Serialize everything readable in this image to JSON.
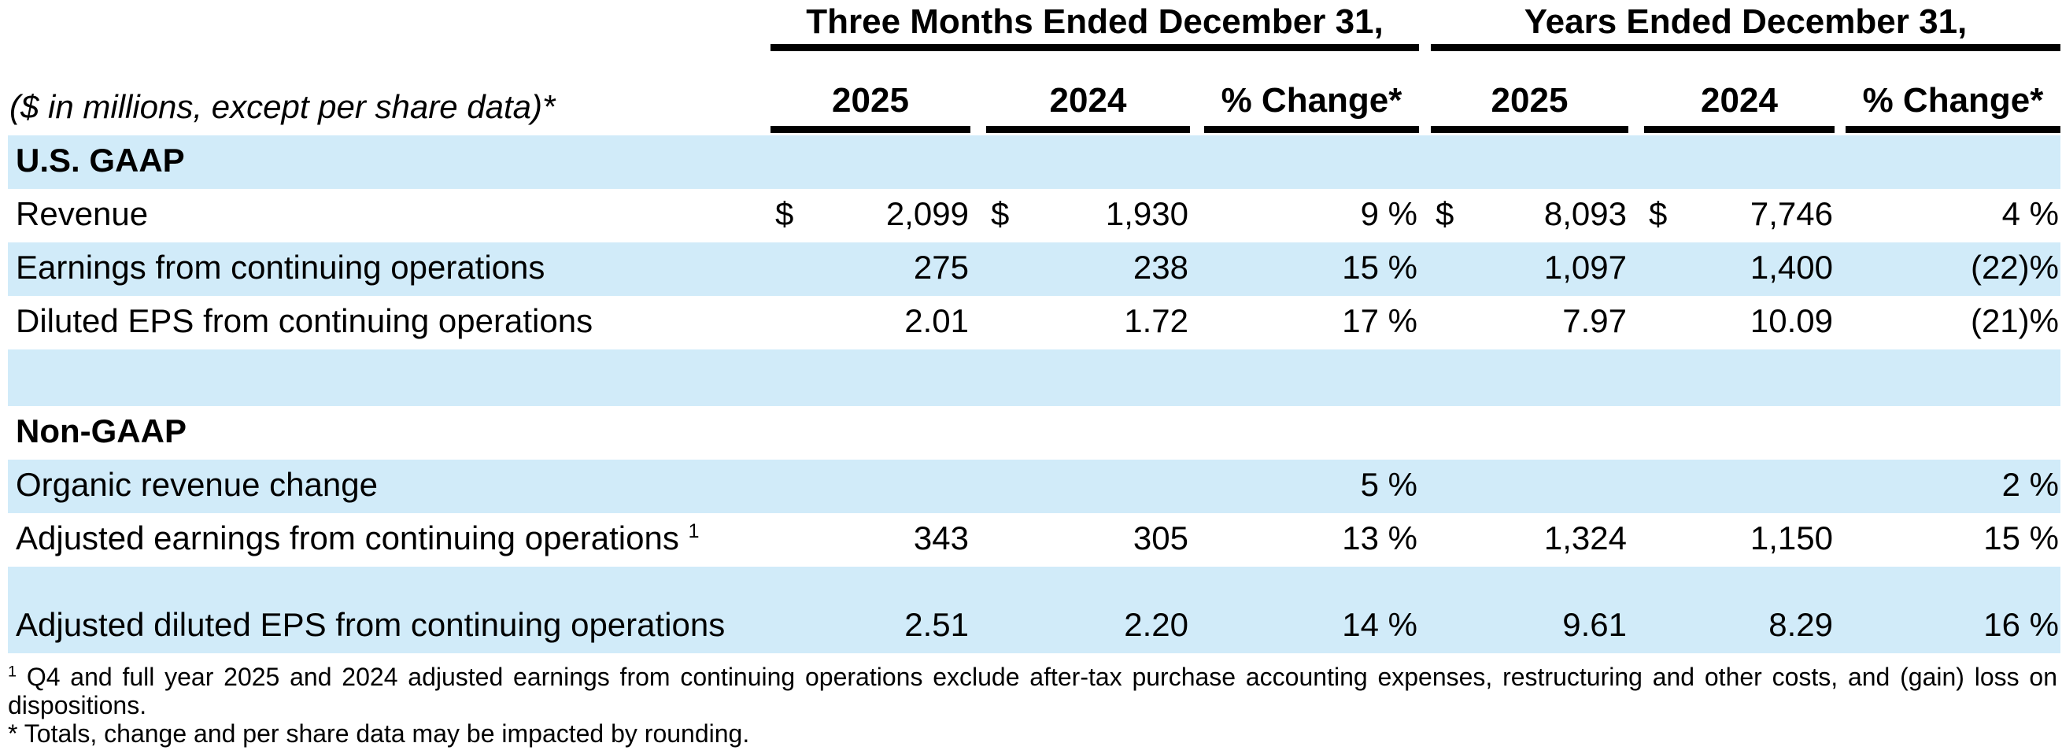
{
  "meta": {
    "shade_color": "#D1EBF9",
    "text_color": "#000000",
    "rule_color": "#000000"
  },
  "header": {
    "note": "($ in millions, except per share data)*",
    "span_groups": [
      {
        "label": "Three Months Ended December 31,"
      },
      {
        "label": "Years Ended December 31,"
      }
    ],
    "columns": [
      "2025",
      "2024",
      "% Change*",
      "2025",
      "2024",
      "% Change*"
    ]
  },
  "table": {
    "rows": [
      {
        "label": "U.S. GAAP",
        "section": true,
        "shaded": true,
        "blank": false,
        "two_line": false,
        "label_sup": "",
        "dollars": [
          "",
          "",
          "",
          "",
          "",
          ""
        ],
        "values": [
          "",
          "",
          "",
          "",
          "",
          ""
        ]
      },
      {
        "label": "Revenue",
        "section": false,
        "shaded": false,
        "blank": false,
        "two_line": false,
        "label_sup": "",
        "dollars": [
          "$",
          "$",
          "",
          "$",
          "$",
          ""
        ],
        "values": [
          "2,099",
          "1,930",
          "9 %",
          "8,093",
          "7,746",
          "4 %"
        ]
      },
      {
        "label": "Earnings from continuing operations",
        "section": false,
        "shaded": true,
        "blank": false,
        "two_line": false,
        "label_sup": "",
        "dollars": [
          "",
          "",
          "",
          "",
          "",
          ""
        ],
        "values": [
          "275",
          "238",
          "15 %",
          "1,097",
          "1,400",
          "(22)%"
        ]
      },
      {
        "label": "Diluted EPS from continuing operations",
        "section": false,
        "shaded": false,
        "blank": false,
        "two_line": false,
        "label_sup": "",
        "dollars": [
          "",
          "",
          "",
          "",
          "",
          ""
        ],
        "values": [
          "2.01",
          "1.72",
          "17 %",
          "7.97",
          "10.09",
          "(21)%"
        ]
      },
      {
        "label": "",
        "section": false,
        "shaded": true,
        "blank": true,
        "two_line": false,
        "label_sup": "",
        "dollars": [
          "",
          "",
          "",
          "",
          "",
          ""
        ],
        "values": [
          "",
          "",
          "",
          "",
          "",
          ""
        ]
      },
      {
        "label": "Non-GAAP",
        "section": true,
        "shaded": false,
        "blank": false,
        "two_line": false,
        "label_sup": "",
        "dollars": [
          "",
          "",
          "",
          "",
          "",
          ""
        ],
        "values": [
          "",
          "",
          "",
          "",
          "",
          ""
        ]
      },
      {
        "label": "Organic revenue change",
        "section": false,
        "shaded": true,
        "blank": false,
        "two_line": false,
        "label_sup": "",
        "dollars": [
          "",
          "",
          "",
          "",
          "",
          ""
        ],
        "values": [
          "",
          "",
          "5 %",
          "",
          "",
          "2 %"
        ]
      },
      {
        "label": "Adjusted earnings from continuing operations",
        "section": false,
        "shaded": false,
        "blank": false,
        "two_line": false,
        "label_sup": "1",
        "dollars": [
          "",
          "",
          "",
          "",
          "",
          ""
        ],
        "values": [
          "343",
          "305",
          "13 %",
          "1,324",
          "1,150",
          "15 %"
        ]
      },
      {
        "label": "Adjusted diluted EPS from continuing operations",
        "section": false,
        "shaded": true,
        "blank": false,
        "two_line": true,
        "label_sup": "",
        "dollars": [
          "",
          "",
          "",
          "",
          "",
          ""
        ],
        "values": [
          "2.51",
          "2.20",
          "14 %",
          "9.61",
          "8.29",
          "16 %"
        ]
      }
    ]
  },
  "footnotes": [
    {
      "sup": "1",
      "text": "Q4 and full year 2025 and 2024 adjusted earnings from continuing operations exclude after-tax purchase accounting expenses, restructuring and other costs, and (gain) loss on dispositions."
    },
    {
      "sup": "",
      "text": "* Totals, change and per share data may be impacted by rounding."
    }
  ]
}
